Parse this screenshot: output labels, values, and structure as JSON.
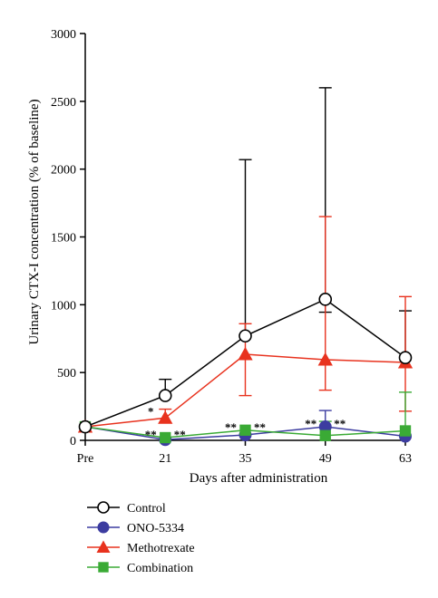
{
  "chart_data": {
    "type": "line",
    "xlabel": "Days after administration",
    "ylabel": "Urinary CTX-I concentration (% of baseline)",
    "x_categories": [
      "Pre",
      "21",
      "35",
      "49",
      "63"
    ],
    "y_ticks": [
      "0",
      "500",
      "1000",
      "1500",
      "2000",
      "2500",
      "3000"
    ],
    "ylim": [
      0,
      3000
    ],
    "grid": false,
    "legend_position": "bottom-left",
    "series": [
      {
        "name": "Control",
        "color": "#000000",
        "marker": "circle-open",
        "values": [
          100,
          330,
          770,
          1040,
          610
        ],
        "error_upper": [
          100,
          450,
          2070,
          2600,
          955
        ],
        "error_lower": [
          100,
          330,
          770,
          945,
          610
        ]
      },
      {
        "name": "ONO-5334",
        "color": "#3c3ca0",
        "marker": "circle-filled",
        "values": [
          100,
          5,
          40,
          100,
          30
        ],
        "error_upper": [
          100,
          5,
          40,
          220,
          30
        ],
        "error_lower": [
          100,
          5,
          40,
          100,
          30
        ]
      },
      {
        "name": "Methotrexate",
        "color": "#e8321e",
        "marker": "triangle-filled",
        "values": [
          100,
          165,
          635,
          595,
          575
        ],
        "error_upper": [
          100,
          230,
          860,
          1650,
          1060
        ],
        "error_lower": [
          100,
          165,
          330,
          370,
          215
        ]
      },
      {
        "name": "Combination",
        "color": "#3aaa35",
        "marker": "square-filled",
        "values": [
          100,
          20,
          75,
          35,
          70
        ],
        "error_upper": [
          100,
          20,
          75,
          140,
          355
        ],
        "error_lower": [
          100,
          20,
          75,
          35,
          70
        ]
      }
    ],
    "annotations": [
      {
        "text": "*",
        "x": "21",
        "y": 210,
        "color": "#e8321e",
        "offset": "left"
      },
      {
        "text": "**",
        "x": "21",
        "y": 40,
        "color": "#3aaa35",
        "offset": "left"
      },
      {
        "text": "**",
        "x": "21",
        "y": 40,
        "color": "#3c3ca0",
        "offset": "right"
      },
      {
        "text": "**",
        "x": "35",
        "y": 95,
        "color": "#3aaa35",
        "offset": "left"
      },
      {
        "text": "**",
        "x": "35",
        "y": 95,
        "color": "#3c3ca0",
        "offset": "right"
      },
      {
        "text": "**",
        "x": "49",
        "y": 120,
        "color": "#3aaa35",
        "offset": "left"
      },
      {
        "text": "**",
        "x": "49",
        "y": 120,
        "color": "#3c3ca0",
        "offset": "right"
      }
    ]
  }
}
